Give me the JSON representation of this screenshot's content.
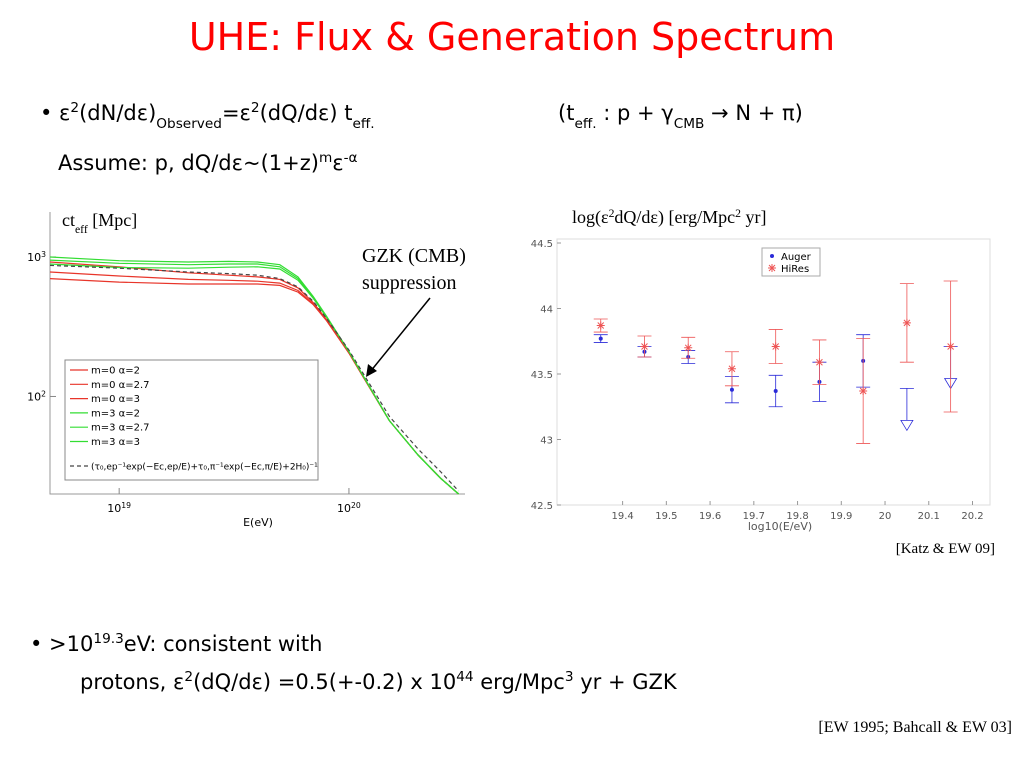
{
  "slide": {
    "title": "UHE: Flux & Generation Spectrum",
    "line1": [
      "• ε",
      {
        "text": "2",
        "pos": "sup"
      },
      "(dN/dε)",
      {
        "text": "Observed",
        "pos": "sub"
      },
      "=ε",
      {
        "text": "2",
        "pos": "sup"
      },
      "(dQ/dε) t",
      {
        "text": "eff.",
        "pos": "sub"
      }
    ],
    "line1b": [
      "(t",
      {
        "text": "eff.",
        "pos": "sub"
      },
      " : p + γ",
      {
        "text": "CMB",
        "pos": "sub"
      },
      " → N + π)"
    ],
    "line2": [
      "Assume: p, dQ/dε~(1+z)",
      {
        "text": "m",
        "pos": "sup"
      },
      "ε",
      {
        "text": "-α",
        "pos": "sup"
      }
    ],
    "line3": [
      "• >10",
      {
        "text": "19.3",
        "pos": "sup"
      },
      "eV: consistent with"
    ],
    "line4": [
      "protons, ε",
      {
        "text": "2",
        "pos": "sup"
      },
      "(dQ/dε) =0.5(+-0.2) x 10",
      {
        "text": "44",
        "pos": "sup"
      },
      " erg/Mpc",
      {
        "text": "3",
        "pos": "sup"
      },
      " yr + GZK"
    ],
    "reference": "[EW 1995; Bahcall & EW 03]"
  },
  "chart_data": [
    {
      "type": "line",
      "xlabel": "E(eV)",
      "ylabel": [
        "ct",
        {
          "text": "eff",
          "pos": "sub"
        },
        " [Mpc]"
      ],
      "xlog": true,
      "ylog": true,
      "x": [
        5e+18,
        1e+19,
        2e+19,
        3e+19,
        4e+19,
        5e+19,
        6e+19,
        7e+19,
        8e+19,
        1e+20,
        1.5e+20,
        2e+20,
        2.5e+20,
        3e+20
      ],
      "xlim": [
        5e+18,
        3.2e+20
      ],
      "ylim": [
        20,
        2100
      ],
      "xticks": [
        {
          "value": 1e+19,
          "label": "10",
          "sup": "19"
        },
        {
          "value": 1e+20,
          "label": "10",
          "sup": "20"
        }
      ],
      "yticks": [
        {
          "value": 100,
          "label": "10",
          "sup": "2"
        },
        {
          "value": 1000,
          "label": "10",
          "sup": "3"
        }
      ],
      "series": [
        {
          "name": "m=0 α=2",
          "color": "#e8352a",
          "values": [
            920,
            850,
            770,
            740,
            720,
            690,
            600,
            470,
            355,
            205,
            67,
            38,
            26,
            20
          ]
        },
        {
          "name": "m=0 α=2.7",
          "color": "#e8352a",
          "values": [
            780,
            730,
            690,
            680,
            670,
            650,
            575,
            460,
            350,
            205,
            67,
            38,
            26,
            20
          ]
        },
        {
          "name": "m=0 α=3",
          "color": "#e8352a",
          "values": [
            700,
            660,
            640,
            640,
            640,
            625,
            560,
            455,
            348,
            205,
            67,
            38,
            26,
            20
          ]
        },
        {
          "name": "m=3 α=2",
          "color": "#33dd33",
          "values": [
            1000,
            940,
            920,
            930,
            920,
            880,
            720,
            520,
            375,
            210,
            67,
            38,
            26,
            20
          ]
        },
        {
          "name": "m=3 α=2.7",
          "color": "#33dd33",
          "values": [
            950,
            900,
            880,
            890,
            890,
            850,
            700,
            510,
            370,
            210,
            67,
            38,
            26,
            20
          ]
        },
        {
          "name": "m=3 α=3",
          "color": "#33dd33",
          "values": [
            890,
            840,
            830,
            845,
            850,
            820,
            680,
            505,
            368,
            210,
            67,
            38,
            26,
            20
          ]
        },
        {
          "name": "(τ₀,ep⁻¹exp(−Ec,ep/E)+τ₀,π⁻¹exp(−Ec,π/E)+2H₀)⁻¹",
          "color": "#444444",
          "dash": true,
          "values": [
            870,
            830,
            780,
            760,
            740,
            700,
            610,
            480,
            362,
            215,
            72,
            42,
            29,
            21
          ]
        }
      ],
      "annotation": [
        "GZK (CMB)",
        "suppression"
      ]
    },
    {
      "type": "errorbar",
      "xlabel": "log10(E/eV)",
      "ylabel": [
        "log(ε",
        {
          "text": "2",
          "pos": "sup"
        },
        "dQ/dε) [erg/Mpc",
        {
          "text": "2",
          "pos": "sup"
        },
        " yr]"
      ],
      "xlim": [
        19.25,
        20.24
      ],
      "ylim": [
        42.5,
        44.5
      ],
      "xticks": [
        19.4,
        19.5,
        19.6,
        19.7,
        19.8,
        19.9,
        20,
        20.1,
        20.2
      ],
      "yticks": [
        42.5,
        43,
        43.5,
        44,
        44.5
      ],
      "series": [
        {
          "name": "Auger",
          "color": "#2a2ad8",
          "marker": "dot",
          "x": [
            19.35,
            19.45,
            19.55,
            19.65,
            19.75,
            19.85,
            19.95,
            20.05,
            20.15
          ],
          "values": [
            43.77,
            43.67,
            43.63,
            43.38,
            43.37,
            43.44,
            43.6,
            43.39,
            43.71
          ],
          "errors": [
            0.03,
            0.04,
            0.05,
            0.1,
            0.12,
            0.15,
            0.2,
            null,
            null
          ],
          "upper_limit": [
            false,
            false,
            false,
            false,
            false,
            false,
            false,
            true,
            true
          ]
        },
        {
          "name": "HiRes",
          "color": "#ee5555",
          "marker": "asterisk",
          "x": [
            19.35,
            19.45,
            19.55,
            19.65,
            19.75,
            19.85,
            19.95,
            20.05,
            20.15
          ],
          "values": [
            43.87,
            43.71,
            43.7,
            43.54,
            43.71,
            43.59,
            43.37,
            43.89,
            43.71
          ],
          "errors": [
            0.05,
            0.08,
            0.08,
            0.13,
            0.13,
            0.17,
            0.4,
            0.3,
            0.5
          ]
        }
      ],
      "legend": "upper-right",
      "caption": "[Katz & EW 09]"
    }
  ]
}
